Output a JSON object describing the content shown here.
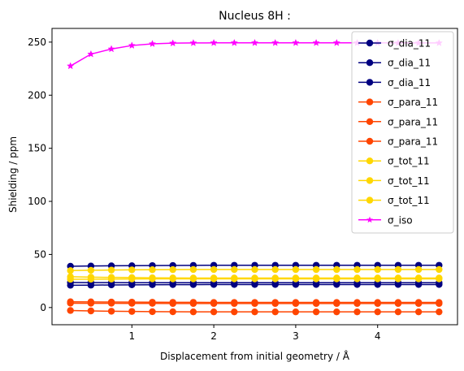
{
  "chart_data": {
    "type": "line",
    "title": "Nucleus 8H :",
    "xlabel": "Displacement from initial geometry / Å",
    "ylabel": "Shielding / ppm",
    "xlim": [
      0.025,
      4.975
    ],
    "ylim": [
      -16.2,
      262.9
    ],
    "xticks": [
      1,
      2,
      3,
      4
    ],
    "yticks": [
      0,
      50,
      100,
      150,
      200,
      250
    ],
    "grid": false,
    "legend_position": "top-right",
    "x": [
      0.25,
      0.5,
      0.75,
      1.0,
      1.25,
      1.5,
      1.75,
      2.0,
      2.25,
      2.5,
      2.75,
      3.0,
      3.25,
      3.5,
      3.75,
      4.0,
      4.25,
      4.5,
      4.75
    ],
    "series": [
      {
        "name": "σ_dia_11",
        "color": "#000080",
        "marker": "circle",
        "values": [
          38.9,
          39.1,
          39.3,
          39.4,
          39.5,
          39.6,
          39.7,
          39.8,
          39.8,
          39.8,
          39.8,
          39.8,
          39.8,
          39.8,
          39.8,
          39.8,
          39.8,
          39.8,
          39.8
        ]
      },
      {
        "name": "σ_dia_11",
        "color": "#000080",
        "marker": "circle",
        "values": [
          23.6,
          23.5,
          23.5,
          23.4,
          23.4,
          23.4,
          23.4,
          23.4,
          23.4,
          23.4,
          23.4,
          23.4,
          23.4,
          23.4,
          23.4,
          23.4,
          23.4,
          23.4,
          23.4
        ]
      },
      {
        "name": "σ_dia_11",
        "color": "#000080",
        "marker": "circle",
        "values": [
          21.0,
          21.1,
          21.3,
          21.4,
          21.5,
          21.6,
          21.6,
          21.7,
          21.7,
          21.7,
          21.7,
          21.7,
          21.7,
          21.7,
          21.7,
          21.7,
          21.7,
          21.7,
          21.7
        ]
      },
      {
        "name": "σ_para_11",
        "color": "#ff4500",
        "marker": "circle",
        "values": [
          5.4,
          5.3,
          5.2,
          5.1,
          5.0,
          4.9,
          4.9,
          4.8,
          4.8,
          4.8,
          4.8,
          4.8,
          4.8,
          4.8,
          4.8,
          4.8,
          4.8,
          4.8,
          4.8
        ]
      },
      {
        "name": "σ_para_11",
        "color": "#ff4500",
        "marker": "circle",
        "values": [
          4.1,
          4.0,
          4.0,
          3.9,
          3.9,
          3.8,
          3.8,
          3.8,
          3.8,
          3.8,
          3.8,
          3.8,
          3.8,
          3.8,
          3.8,
          3.8,
          3.8,
          3.8,
          3.8
        ]
      },
      {
        "name": "σ_para_11",
        "color": "#ff4500",
        "marker": "circle",
        "values": [
          -2.8,
          -3.2,
          -3.5,
          -3.7,
          -3.9,
          -4.0,
          -4.1,
          -4.1,
          -4.1,
          -4.1,
          -4.1,
          -4.1,
          -4.1,
          -4.1,
          -4.1,
          -4.1,
          -4.1,
          -4.1,
          -4.1
        ]
      },
      {
        "name": "σ_tot_11",
        "color": "#ffd700",
        "marker": "circle",
        "values": [
          34.8,
          35.1,
          35.3,
          35.5,
          35.6,
          35.7,
          35.8,
          35.8,
          35.8,
          35.8,
          35.8,
          35.8,
          35.8,
          35.8,
          35.8,
          35.8,
          35.8,
          35.8,
          35.8
        ]
      },
      {
        "name": "σ_tot_11",
        "color": "#ffd700",
        "marker": "circle",
        "values": [
          29.0,
          28.6,
          28.4,
          28.2,
          28.0,
          27.9,
          27.8,
          27.8,
          27.8,
          27.8,
          27.8,
          27.8,
          27.8,
          27.8,
          27.8,
          27.8,
          27.8,
          27.8,
          27.8
        ]
      },
      {
        "name": "σ_tot_11",
        "color": "#ffd700",
        "marker": "circle",
        "values": [
          26.6,
          26.7,
          26.8,
          26.9,
          27.0,
          27.0,
          27.0,
          27.0,
          27.0,
          27.0,
          27.0,
          27.0,
          27.0,
          27.0,
          27.0,
          27.0,
          27.0,
          27.0,
          27.0
        ]
      },
      {
        "name": "σ_iso",
        "color": "#ff00ff",
        "marker": "star",
        "values": [
          227.5,
          238.7,
          243.5,
          246.8,
          248.4,
          249.0,
          249.2,
          249.3,
          249.3,
          249.3,
          249.3,
          249.3,
          249.3,
          249.3,
          249.3,
          249.3,
          249.2,
          249.2,
          249.2
        ]
      }
    ]
  }
}
